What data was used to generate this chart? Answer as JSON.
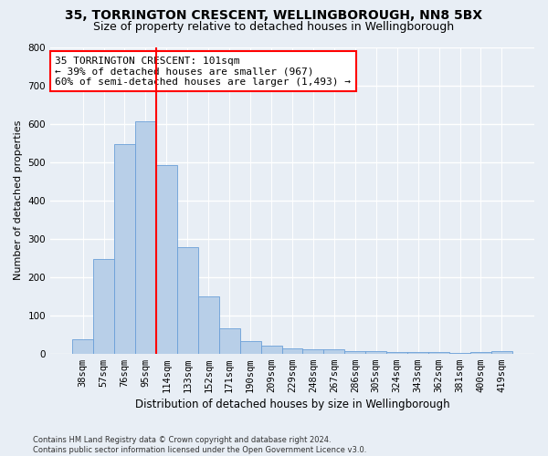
{
  "title": "35, TORRINGTON CRESCENT, WELLINGBOROUGH, NN8 5BX",
  "subtitle": "Size of property relative to detached houses in Wellingborough",
  "xlabel": "Distribution of detached houses by size in Wellingborough",
  "ylabel": "Number of detached properties",
  "bin_labels": [
    "38sqm",
    "57sqm",
    "76sqm",
    "95sqm",
    "114sqm",
    "133sqm",
    "152sqm",
    "171sqm",
    "190sqm",
    "209sqm",
    "229sqm",
    "248sqm",
    "267sqm",
    "286sqm",
    "305sqm",
    "324sqm",
    "343sqm",
    "362sqm",
    "381sqm",
    "400sqm",
    "419sqm"
  ],
  "bar_values": [
    37,
    247,
    547,
    607,
    493,
    277,
    148,
    65,
    33,
    20,
    14,
    12,
    10,
    7,
    6,
    5,
    4,
    3,
    1,
    5,
    7
  ],
  "bar_color": "#b8cfe8",
  "bar_edge_color": "#6a9fd8",
  "vline_color": "red",
  "annotation_text": "35 TORRINGTON CRESCENT: 101sqm\n← 39% of detached houses are smaller (967)\n60% of semi-detached houses are larger (1,493) →",
  "annotation_box_color": "white",
  "annotation_box_edge_color": "red",
  "footnote": "Contains HM Land Registry data © Crown copyright and database right 2024.\nContains public sector information licensed under the Open Government Licence v3.0.",
  "ylim": [
    0,
    800
  ],
  "yticks": [
    0,
    100,
    200,
    300,
    400,
    500,
    600,
    700,
    800
  ],
  "bg_color": "#e8eef5",
  "grid_color": "white",
  "title_fontsize": 10,
  "subtitle_fontsize": 9,
  "xlabel_fontsize": 8.5,
  "ylabel_fontsize": 8,
  "tick_fontsize": 7.5,
  "footnote_fontsize": 6,
  "annotation_fontsize": 8
}
